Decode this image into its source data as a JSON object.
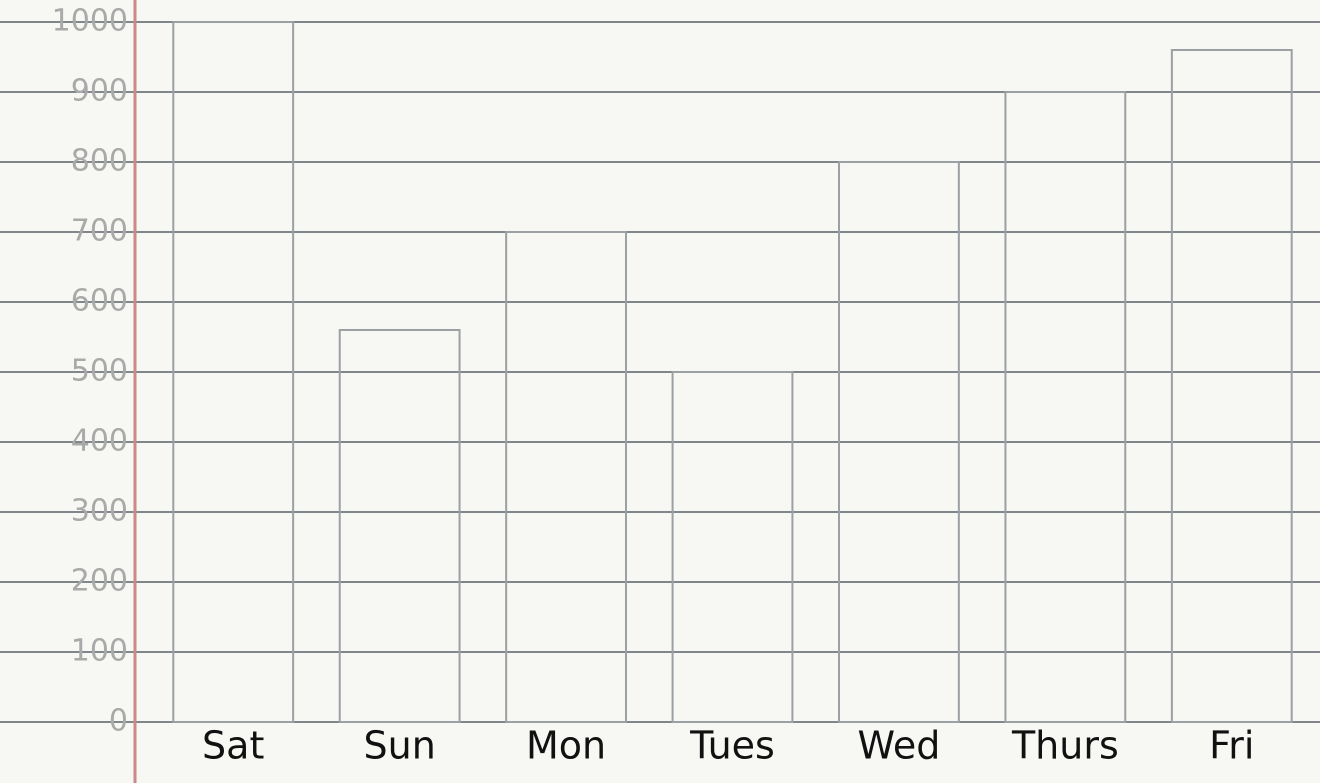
{
  "chart_data": {
    "type": "bar",
    "categories": [
      "Sat",
      "Sun",
      "Mon",
      "Tues",
      "Wed",
      "Thurs",
      "Fri"
    ],
    "values": [
      1000,
      560,
      700,
      500,
      800,
      900,
      960
    ],
    "color": "#9aa0a4",
    "ylim": [
      0,
      1000
    ],
    "yticks": [
      0,
      100,
      200,
      300,
      400,
      500,
      600,
      700,
      800,
      900,
      1000
    ],
    "grid": true
  }
}
